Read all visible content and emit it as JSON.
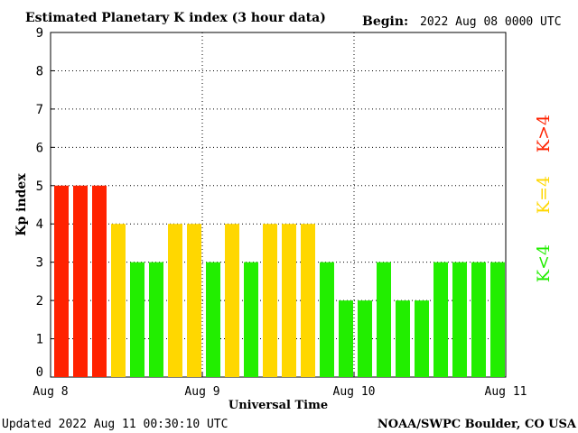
{
  "header": {
    "title": "Estimated Planetary K index (3 hour data)",
    "begin_label": "Begin:",
    "begin_value": "2022 Aug 08 0000 UTC"
  },
  "footer": {
    "updated": "Updated 2022 Aug 11 00:30:10 UTC",
    "source": "NOAA/SWPC Boulder, CO USA"
  },
  "legend": {
    "above": "K>4",
    "equal": "K=4",
    "below": "K<4"
  },
  "colors": {
    "above": "#ff2200",
    "equal": "#ffd700",
    "below": "#22ee00"
  },
  "chart_data": {
    "type": "bar",
    "title": "Estimated Planetary K index (3 hour data)",
    "xlabel": "Universal Time",
    "ylabel": "Kp index",
    "ylim": [
      0,
      9
    ],
    "yticks": [
      "0",
      "1",
      "2",
      "3",
      "4",
      "5",
      "6",
      "7",
      "8",
      "9"
    ],
    "xticks": [
      "Aug 8",
      "Aug 9",
      "Aug 10",
      "Aug 11"
    ],
    "grid": true,
    "bar_interval_hours": 3,
    "values": [
      5,
      5,
      5,
      4,
      3,
      3,
      4,
      4,
      3,
      4,
      3,
      4,
      4,
      4,
      3,
      2,
      2,
      3,
      2,
      2,
      3,
      3,
      3,
      3
    ]
  }
}
